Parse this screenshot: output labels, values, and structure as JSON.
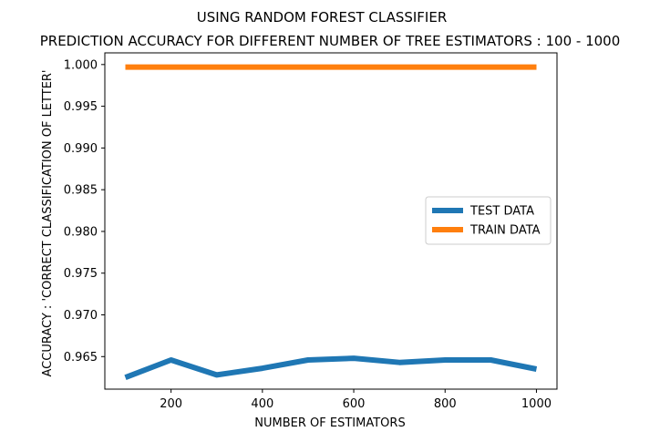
{
  "chart_data": {
    "type": "line",
    "suptitle": "USING RANDOM FOREST CLASSIFIER",
    "title": "PREDICTION ACCURACY FOR DIFFERENT NUMBER OF TREE ESTIMATORS : 100 - 1000",
    "xlabel": "NUMBER OF ESTIMATORS",
    "ylabel": "ACCURACY : 'CORRECT CLASSIFICATION OF LETTER'",
    "x": [
      100,
      200,
      300,
      400,
      500,
      600,
      700,
      800,
      900,
      1000
    ],
    "xlim": [
      55,
      1045
    ],
    "ylim": [
      0.9611,
      1.0014
    ],
    "xticks": [
      200,
      400,
      600,
      800,
      1000
    ],
    "xtick_labels": [
      "200",
      "400",
      "600",
      "800",
      "1000"
    ],
    "yticks": [
      0.965,
      0.97,
      0.975,
      0.98,
      0.985,
      0.99,
      0.995,
      1.0
    ],
    "ytick_labels": [
      "0.965",
      "0.970",
      "0.975",
      "0.980",
      "0.985",
      "0.990",
      "0.995",
      "1.000"
    ],
    "grid": false,
    "legend_position": "center-right",
    "series": [
      {
        "name": "TEST DATA",
        "color": "#1f77b4",
        "values": [
          0.9625,
          0.9646,
          0.9628,
          0.9636,
          0.9646,
          0.9648,
          0.9643,
          0.9646,
          0.9646,
          0.9635
        ]
      },
      {
        "name": "TRAIN DATA",
        "color": "#ff7f0e",
        "values": [
          0.9997,
          0.9997,
          0.9997,
          0.9997,
          0.9997,
          0.9997,
          0.9997,
          0.9997,
          0.9997,
          0.9997
        ]
      }
    ]
  }
}
